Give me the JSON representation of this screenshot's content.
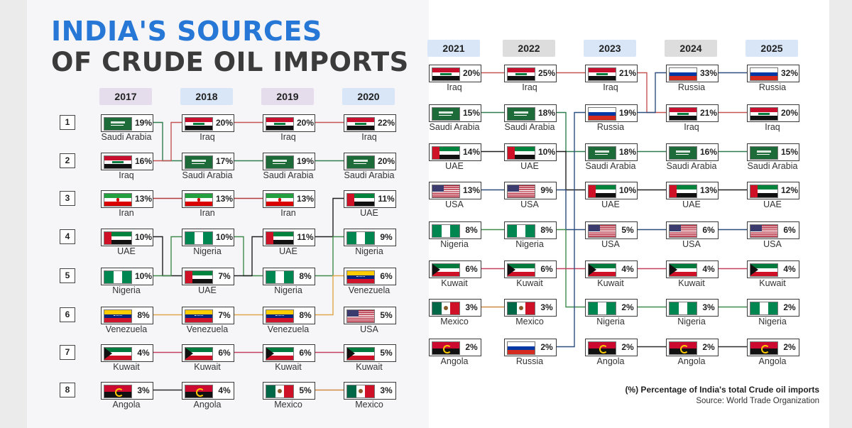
{
  "title_line1": "INDIA'S SOURCES",
  "title_line2": "OF CRUDE OIL IMPORTS",
  "footnote": "(%) Percentage of India's total Crude oil imports",
  "source": "Source: World Trade Organization",
  "country_colors": {
    "Saudi Arabia": "#2e7d4f",
    "Iraq": "#c45555",
    "Iran": "#b03a3a",
    "UAE": "#1f1f1f",
    "Nigeria": "#3f8a4c",
    "Venezuela": "#e0a64a",
    "Kuwait": "#c44060",
    "Angola": "#2b2b2b",
    "Mexico": "#d08a44",
    "USA": "#2a4c7a",
    "Russia": "#2c4f80"
  },
  "chart_data": {
    "type": "table",
    "title": "INDIA'S SOURCES OF CRUDE OIL IMPORTS",
    "ranks": [
      "1",
      "2",
      "3",
      "4",
      "5",
      "6",
      "7",
      "8"
    ],
    "unit": "%",
    "years": [
      {
        "year": "2017",
        "color": "#e5dcec",
        "entries": [
          {
            "country": "Saudi Arabia",
            "share": 19
          },
          {
            "country": "Iraq",
            "share": 16
          },
          {
            "country": "Iran",
            "share": 13
          },
          {
            "country": "UAE",
            "share": 10
          },
          {
            "country": "Nigeria",
            "share": 10
          },
          {
            "country": "Venezuela",
            "share": 8
          },
          {
            "country": "Kuwait",
            "share": 4
          },
          {
            "country": "Angola",
            "share": 3
          }
        ]
      },
      {
        "year": "2018",
        "color": "#d8e6f7",
        "entries": [
          {
            "country": "Iraq",
            "share": 20
          },
          {
            "country": "Saudi Arabia",
            "share": 17
          },
          {
            "country": "Iran",
            "share": 13
          },
          {
            "country": "Nigeria",
            "share": 10
          },
          {
            "country": "UAE",
            "share": 7
          },
          {
            "country": "Venezuela",
            "share": 7
          },
          {
            "country": "Kuwait",
            "share": 6
          },
          {
            "country": "Angola",
            "share": 4
          }
        ]
      },
      {
        "year": "2019",
        "color": "#e5dcec",
        "entries": [
          {
            "country": "Iraq",
            "share": 20
          },
          {
            "country": "Saudi Arabia",
            "share": 19
          },
          {
            "country": "Iran",
            "share": 13
          },
          {
            "country": "UAE",
            "share": 11
          },
          {
            "country": "Nigeria",
            "share": 8
          },
          {
            "country": "Venezuela",
            "share": 8
          },
          {
            "country": "Kuwait",
            "share": 6
          },
          {
            "country": "Mexico",
            "share": 5
          }
        ]
      },
      {
        "year": "2020",
        "color": "#d8e6f7",
        "entries": [
          {
            "country": "Iraq",
            "share": 22
          },
          {
            "country": "Saudi Arabia",
            "share": 20
          },
          {
            "country": "UAE",
            "share": 11
          },
          {
            "country": "Nigeria",
            "share": 9
          },
          {
            "country": "Venezuela",
            "share": 6
          },
          {
            "country": "USA",
            "share": 5
          },
          {
            "country": "Kuwait",
            "share": 5
          },
          {
            "country": "Mexico",
            "share": 3
          }
        ]
      },
      {
        "year": "2021",
        "color": "#d8e6f7",
        "entries": [
          {
            "country": "Iraq",
            "share": 20
          },
          {
            "country": "Saudi Arabia",
            "share": 15
          },
          {
            "country": "UAE",
            "share": 14
          },
          {
            "country": "USA",
            "share": 13
          },
          {
            "country": "Nigeria",
            "share": 8
          },
          {
            "country": "Kuwait",
            "share": 6
          },
          {
            "country": "Mexico",
            "share": 3
          },
          {
            "country": "Angola",
            "share": 2
          }
        ]
      },
      {
        "year": "2022",
        "color": "#dddddd",
        "entries": [
          {
            "country": "Iraq",
            "share": 25
          },
          {
            "country": "Saudi Arabia",
            "share": 18
          },
          {
            "country": "UAE",
            "share": 10
          },
          {
            "country": "USA",
            "share": 9
          },
          {
            "country": "Nigeria",
            "share": 8
          },
          {
            "country": "Kuwait",
            "share": 6
          },
          {
            "country": "Mexico",
            "share": 3
          },
          {
            "country": "Russia",
            "share": 2
          }
        ]
      },
      {
        "year": "2023",
        "color": "#d8e6f7",
        "entries": [
          {
            "country": "Iraq",
            "share": 21
          },
          {
            "country": "Russia",
            "share": 19
          },
          {
            "country": "Saudi Arabia",
            "share": 18
          },
          {
            "country": "UAE",
            "share": 10
          },
          {
            "country": "USA",
            "share": 5
          },
          {
            "country": "Kuwait",
            "share": 4
          },
          {
            "country": "Nigeria",
            "share": 2
          },
          {
            "country": "Angola",
            "share": 2
          }
        ]
      },
      {
        "year": "2024",
        "color": "#dddddd",
        "entries": [
          {
            "country": "Russia",
            "share": 33
          },
          {
            "country": "Iraq",
            "share": 21
          },
          {
            "country": "Saudi Arabia",
            "share": 16
          },
          {
            "country": "UAE",
            "share": 13
          },
          {
            "country": "USA",
            "share": 6
          },
          {
            "country": "Kuwait",
            "share": 4
          },
          {
            "country": "Nigeria",
            "share": 3
          },
          {
            "country": "Angola",
            "share": 2
          }
        ]
      },
      {
        "year": "2025",
        "color": "#d8e6f7",
        "entries": [
          {
            "country": "Russia",
            "share": 32
          },
          {
            "country": "Iraq",
            "share": 20
          },
          {
            "country": "Saudi Arabia",
            "share": 15
          },
          {
            "country": "UAE",
            "share": 12
          },
          {
            "country": "USA",
            "share": 6
          },
          {
            "country": "Kuwait",
            "share": 4
          },
          {
            "country": "Nigeria",
            "share": 2
          },
          {
            "country": "Angola",
            "share": 2
          }
        ]
      }
    ]
  }
}
